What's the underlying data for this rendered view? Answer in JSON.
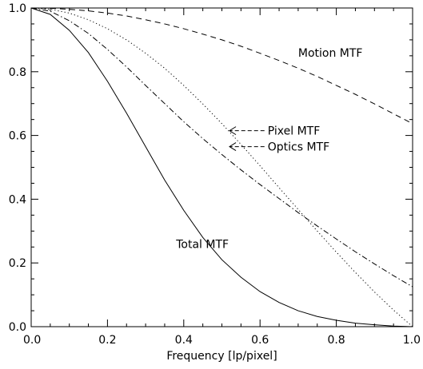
{
  "chart_data": {
    "type": "line",
    "title": "",
    "xlabel": "Frequency [lp/pixel]",
    "ylabel": "",
    "xlim": [
      0.0,
      1.0
    ],
    "ylim": [
      0.0,
      1.0
    ],
    "grid": false,
    "xticks": [
      0.0,
      0.2,
      0.4,
      0.6,
      0.8,
      1.0
    ],
    "xtick_labels": [
      "0.0",
      "0.2",
      "0.4",
      "0.6",
      "0.8",
      "1.0"
    ],
    "yticks": [
      0.0,
      0.2,
      0.4,
      0.6,
      0.8,
      1.0
    ],
    "ytick_labels": [
      "0.0",
      "0.2",
      "0.4",
      "0.6",
      "0.8",
      "1.0"
    ],
    "series": [
      {
        "name": "Motion MTF",
        "line_style": "dashed",
        "x": [
          0.0,
          0.05,
          0.1,
          0.15,
          0.2,
          0.25,
          0.3,
          0.35,
          0.4,
          0.45,
          0.5,
          0.55,
          0.6,
          0.65,
          0.7,
          0.75,
          0.8,
          0.85,
          0.9,
          0.95,
          1.0
        ],
        "y": [
          1.0,
          0.999,
          0.996,
          0.991,
          0.984,
          0.975,
          0.963,
          0.95,
          0.935,
          0.918,
          0.9,
          0.88,
          0.858,
          0.835,
          0.811,
          0.785,
          0.757,
          0.729,
          0.699,
          0.668,
          0.637
        ]
      },
      {
        "name": "Pixel MTF",
        "line_style": "dotted",
        "x": [
          0.0,
          0.05,
          0.1,
          0.15,
          0.2,
          0.25,
          0.3,
          0.35,
          0.4,
          0.45,
          0.5,
          0.55,
          0.6,
          0.65,
          0.7,
          0.75,
          0.8,
          0.85,
          0.9,
          0.95,
          1.0
        ],
        "y": [
          1.0,
          0.996,
          0.984,
          0.963,
          0.935,
          0.9,
          0.858,
          0.811,
          0.757,
          0.699,
          0.637,
          0.572,
          0.505,
          0.436,
          0.368,
          0.3,
          0.234,
          0.17,
          0.109,
          0.052,
          0.0
        ]
      },
      {
        "name": "Optics MTF",
        "line_style": "dash-dot",
        "x": [
          0.0,
          0.05,
          0.1,
          0.15,
          0.2,
          0.25,
          0.3,
          0.35,
          0.4,
          0.45,
          0.5,
          0.55,
          0.6,
          0.65,
          0.7,
          0.75,
          0.8,
          0.85,
          0.9,
          0.95,
          1.0
        ],
        "y": [
          1.0,
          0.99,
          0.96,
          0.92,
          0.87,
          0.815,
          0.757,
          0.7,
          0.643,
          0.59,
          0.54,
          0.492,
          0.446,
          0.402,
          0.358,
          0.316,
          0.275,
          0.235,
          0.197,
          0.16,
          0.125
        ]
      },
      {
        "name": "Total MTF",
        "line_style": "solid",
        "x": [
          0.0,
          0.05,
          0.1,
          0.15,
          0.2,
          0.25,
          0.3,
          0.35,
          0.4,
          0.45,
          0.5,
          0.55,
          0.6,
          0.65,
          0.7,
          0.75,
          0.8,
          0.85,
          0.9,
          0.95,
          1.0
        ],
        "y": [
          1.0,
          0.98,
          0.93,
          0.86,
          0.77,
          0.67,
          0.565,
          0.46,
          0.365,
          0.28,
          0.21,
          0.155,
          0.11,
          0.076,
          0.05,
          0.032,
          0.02,
          0.011,
          0.006,
          0.002,
          0.0
        ]
      }
    ],
    "annotations": [
      {
        "name": "motion",
        "text": "Motion MTF",
        "x": 0.7,
        "y": 0.86,
        "arrow": false
      },
      {
        "name": "pixel",
        "text": "Pixel MTF",
        "x": 0.62,
        "y": 0.615,
        "arrow": true,
        "arrow_to_x": 0.52,
        "arrow_to_y": 0.615
      },
      {
        "name": "optics",
        "text": "Optics MTF",
        "x": 0.62,
        "y": 0.565,
        "arrow": true,
        "arrow_to_x": 0.52,
        "arrow_to_y": 0.565
      },
      {
        "name": "total",
        "text": "Total MTF",
        "x": 0.38,
        "y": 0.26,
        "arrow": false
      }
    ]
  }
}
